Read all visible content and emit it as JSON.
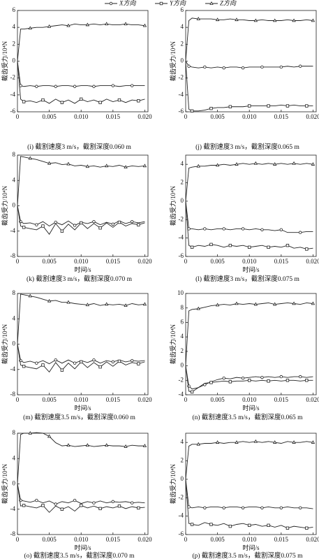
{
  "chart_data": [
    {
      "type": "line",
      "title": "(i)  截割速度3 m/s，截割深度0.060 m",
      "ylabel": "截齿受力/10⁴N",
      "x": [
        0,
        0.0005,
        0.001,
        0.002,
        0.003,
        0.004,
        0.005,
        0.006,
        0.007,
        0.008,
        0.009,
        0.01,
        0.011,
        0.012,
        0.013,
        0.014,
        0.015,
        0.016,
        0.017,
        0.018,
        0.019,
        0.02
      ],
      "xlim": [
        0,
        0.0205
      ],
      "xticks": [
        0,
        0.005,
        {
          "value": 0.01,
          "label": "0.010"
        },
        0.015,
        {
          "value": 0.02,
          "label": "0.020"
        }
      ],
      "ylim": [
        -6,
        6
      ],
      "yticks": [
        -6,
        -4,
        -2,
        0,
        2,
        4,
        6
      ],
      "series": [
        {
          "name": "X方向",
          "color": "#222",
          "values": [
            0,
            -2.9,
            -3.0,
            -2.9,
            -3.0,
            -2.9,
            -2.9,
            -3.0,
            -2.9,
            -2.9,
            -3.0,
            -2.9,
            -2.9,
            -3.0,
            -2.9,
            -2.9,
            -2.9,
            -3.0,
            -2.9,
            -2.9,
            -2.9,
            -2.9
          ]
        },
        {
          "name": "Y方向",
          "color": "#222",
          "values": [
            0,
            -4.5,
            -4.8,
            -4.7,
            -4.9,
            -4.6,
            -5.0,
            -4.5,
            -4.9,
            -4.6,
            -5.0,
            -4.5,
            -4.8,
            -4.6,
            -4.9,
            -4.5,
            -4.8,
            -4.6,
            -4.9,
            -4.6,
            -4.7,
            -4.5
          ]
        },
        {
          "name": "Z方向",
          "color": "#222",
          "values": [
            0,
            3.8,
            3.8,
            3.9,
            4.0,
            4.0,
            4.1,
            4.2,
            4.3,
            4.2,
            4.4,
            4.3,
            4.3,
            4.4,
            4.3,
            4.4,
            4.3,
            4.3,
            4.4,
            4.3,
            4.3,
            4.2
          ]
        }
      ]
    },
    {
      "type": "line",
      "title": "(j)  截割速度3 m/s，截割深度0.065 m",
      "ylabel": "截齿受力/10⁴N",
      "x": [
        0,
        0.0005,
        0.001,
        0.002,
        0.003,
        0.004,
        0.005,
        0.006,
        0.007,
        0.008,
        0.009,
        0.01,
        0.011,
        0.012,
        0.013,
        0.014,
        0.015,
        0.016,
        0.017,
        0.018,
        0.019,
        0.02
      ],
      "xlim": [
        0,
        0.0205
      ],
      "xticks": [
        0,
        0.005,
        {
          "value": 0.01,
          "label": "0.010"
        },
        0.015,
        {
          "value": 0.02,
          "label": "0.020"
        }
      ],
      "ylim": [
        -6,
        6
      ],
      "yticks": [
        -6,
        -4,
        -2,
        0,
        2,
        4,
        6
      ],
      "series": [
        {
          "name": "X方向",
          "color": "#222",
          "values": [
            0,
            -0.6,
            -0.7,
            -0.8,
            -0.7,
            -0.8,
            -0.7,
            -0.8,
            -0.7,
            -0.7,
            -0.8,
            -0.7,
            -0.7,
            -0.7,
            -0.7,
            -0.7,
            -0.7,
            -0.6,
            -0.7,
            -0.6,
            -0.6,
            -0.6
          ]
        },
        {
          "name": "Y方向",
          "color": "#222",
          "values": [
            0,
            -5.7,
            -5.9,
            -5.9,
            -5.8,
            -5.6,
            -5.5,
            -5.5,
            -5.4,
            -5.4,
            -5.4,
            -5.3,
            -5.3,
            -5.3,
            -5.3,
            -5.3,
            -5.2,
            -5.3,
            -5.2,
            -5.3,
            -5.3,
            -5.3
          ]
        },
        {
          "name": "Z方向",
          "color": "#222",
          "values": [
            0,
            4.8,
            5.1,
            5.0,
            5.0,
            5.0,
            4.9,
            4.9,
            5.0,
            4.9,
            4.9,
            4.8,
            4.8,
            4.9,
            4.8,
            4.8,
            4.8,
            4.9,
            4.8,
            4.8,
            4.9,
            4.8
          ]
        }
      ]
    },
    {
      "type": "line",
      "title": "(k)  截割速度3 m/s，截割深度0.070 m",
      "ylabel": "截齿受力/10⁴N",
      "xlabel": "时间/s",
      "x": [
        0,
        0.0005,
        0.001,
        0.002,
        0.003,
        0.004,
        0.005,
        0.006,
        0.007,
        0.008,
        0.009,
        0.01,
        0.011,
        0.012,
        0.013,
        0.014,
        0.015,
        0.016,
        0.017,
        0.018,
        0.019,
        0.02
      ],
      "xlim": [
        0,
        0.0205
      ],
      "xticks": [
        0,
        0.005,
        {
          "value": 0.01,
          "label": "0.010"
        },
        0.015,
        {
          "value": 0.02,
          "label": "0.020"
        }
      ],
      "ylim": [
        -8,
        8
      ],
      "yticks": [
        -8,
        -4,
        0,
        4,
        8
      ],
      "series": [
        {
          "name": "X方向",
          "color": "#222",
          "values": [
            0,
            -2.5,
            -2.8,
            -2.7,
            -3.0,
            -2.5,
            -3.2,
            -2.6,
            -3.0,
            -2.4,
            -3.1,
            -2.6,
            -2.8,
            -2.5,
            -3.0,
            -2.6,
            -2.9,
            -2.4,
            -2.8,
            -2.5,
            -2.7,
            -2.5
          ]
        },
        {
          "name": "Y方向",
          "color": "#222",
          "values": [
            0,
            -3.2,
            -3.4,
            -3.6,
            -3.8,
            -3.2,
            -4.5,
            -2.8,
            -4.0,
            -2.9,
            -3.8,
            -2.7,
            -3.6,
            -2.8,
            -3.5,
            -2.7,
            -3.4,
            -2.6,
            -3.2,
            -2.8,
            -3.0,
            -2.7
          ]
        },
        {
          "name": "Z方向",
          "color": "#222",
          "values": [
            0,
            7.8,
            7.7,
            7.5,
            7.3,
            7.0,
            6.7,
            6.8,
            6.5,
            6.6,
            6.3,
            6.4,
            6.2,
            6.3,
            6.1,
            6.3,
            6.2,
            6.4,
            6.1,
            6.3,
            6.2,
            6.3
          ]
        }
      ]
    },
    {
      "type": "line",
      "title": "(l)  截割速度3 m/s，截割深度0.075 m",
      "ylabel": "截齿受力/10⁴N",
      "xlabel": "时间/s",
      "x": [
        0,
        0.0005,
        0.001,
        0.002,
        0.003,
        0.004,
        0.005,
        0.006,
        0.007,
        0.008,
        0.009,
        0.01,
        0.011,
        0.012,
        0.013,
        0.014,
        0.015,
        0.016,
        0.017,
        0.018,
        0.019,
        0.02
      ],
      "xlim": [
        0,
        0.0205
      ],
      "xticks": [
        0,
        0.005,
        {
          "value": 0.01,
          "label": "0.010"
        },
        0.015,
        {
          "value": 0.02,
          "label": "0.020"
        }
      ],
      "ylim": [
        -6,
        5
      ],
      "yticks": [
        -6,
        -4,
        -2,
        0,
        2,
        4
      ],
      "series": [
        {
          "name": "X方向",
          "color": "#222",
          "values": [
            0,
            -3.0,
            -3.0,
            -3.1,
            -3.0,
            -3.1,
            -3.0,
            -3.0,
            -3.1,
            -3.0,
            -3.0,
            -3.1,
            -3.0,
            -3.1,
            -3.1,
            -3.2,
            -3.1,
            -3.4,
            -3.4,
            -3.4,
            -3.3,
            -3.3
          ]
        },
        {
          "name": "Y方向",
          "color": "#222",
          "values": [
            0,
            -4.8,
            -5.0,
            -4.8,
            -4.9,
            -4.7,
            -4.8,
            -5.0,
            -4.8,
            -4.9,
            -4.8,
            -5.0,
            -4.9,
            -4.8,
            -5.0,
            -4.9,
            -5.0,
            -4.8,
            -5.1,
            -5.0,
            -5.2,
            -5.1
          ]
        },
        {
          "name": "Z方向",
          "color": "#222",
          "values": [
            0,
            3.6,
            3.7,
            3.8,
            3.8,
            3.9,
            3.9,
            4.0,
            3.9,
            4.0,
            4.1,
            4.0,
            4.1,
            4.0,
            4.1,
            4.0,
            4.1,
            4.0,
            4.1,
            4.0,
            4.1,
            4.0
          ]
        }
      ]
    },
    {
      "type": "line",
      "title": "(m)  截割速度3.5 m/s，截割深度0.060 m",
      "ylabel": "截齿受力/10⁴N",
      "xlabel": "时间/s",
      "x": [
        0,
        0.0005,
        0.001,
        0.002,
        0.003,
        0.004,
        0.005,
        0.006,
        0.007,
        0.008,
        0.009,
        0.01,
        0.011,
        0.012,
        0.013,
        0.014,
        0.015,
        0.016,
        0.017,
        0.018,
        0.019,
        0.02
      ],
      "xlim": [
        0,
        0.0205
      ],
      "xticks": [
        0,
        0.005,
        {
          "value": 0.01,
          "label": "0.010"
        },
        0.015,
        {
          "value": 0.02,
          "label": "0.020"
        }
      ],
      "ylim": [
        -8,
        8
      ],
      "yticks": [
        -8,
        -4,
        0,
        4,
        8
      ],
      "series": [
        {
          "name": "X方向",
          "color": "#222",
          "values": [
            0,
            -2.6,
            -2.9,
            -2.7,
            -3.0,
            -2.6,
            -3.1,
            -2.5,
            -3.0,
            -2.5,
            -3.0,
            -2.6,
            -2.9,
            -2.5,
            -3.0,
            -2.6,
            -2.8,
            -2.5,
            -2.8,
            -2.6,
            -2.7,
            -2.6
          ]
        },
        {
          "name": "Y方向",
          "color": "#222",
          "values": [
            0,
            -3.3,
            -3.5,
            -3.7,
            -3.9,
            -3.3,
            -4.4,
            -2.9,
            -4.1,
            -3.0,
            -3.9,
            -2.8,
            -3.7,
            -2.9,
            -3.6,
            -2.8,
            -3.5,
            -2.7,
            -3.3,
            -2.9,
            -3.1,
            -2.8
          ]
        },
        {
          "name": "Z方向",
          "color": "#222",
          "values": [
            0,
            7.9,
            7.8,
            7.6,
            7.4,
            7.1,
            6.8,
            6.9,
            6.6,
            6.6,
            6.4,
            6.3,
            6.2,
            6.4,
            6.1,
            6.3,
            6.2,
            6.3,
            6.1,
            6.4,
            6.2,
            6.3
          ]
        }
      ]
    },
    {
      "type": "line",
      "title": "(n)  截割速度3.5 m/s，截割深度0.065 m",
      "ylabel": "截齿受力/10⁴N",
      "xlabel": "时间/s",
      "x": [
        0,
        0.0005,
        0.001,
        0.002,
        0.003,
        0.004,
        0.005,
        0.006,
        0.007,
        0.008,
        0.009,
        0.01,
        0.011,
        0.012,
        0.013,
        0.014,
        0.015,
        0.016,
        0.017,
        0.018,
        0.019,
        0.02
      ],
      "xlim": [
        0,
        0.0205
      ],
      "xticks": [
        0,
        0.005,
        {
          "value": 0.01,
          "label": "0.010"
        },
        0.015,
        {
          "value": 0.02,
          "label": "0.020"
        }
      ],
      "ylim": [
        -4,
        10
      ],
      "yticks": [
        -4,
        -2,
        0,
        2,
        4,
        6,
        8,
        10
      ],
      "series": [
        {
          "name": "X方向",
          "color": "#222",
          "values": [
            0,
            -2.8,
            -3.2,
            -3.0,
            -2.6,
            -2.2,
            -1.9,
            -1.7,
            -1.8,
            -1.6,
            -1.7,
            -1.6,
            -1.5,
            -1.6,
            -1.5,
            -1.6,
            -1.5,
            -1.6,
            -1.5,
            -1.5,
            -1.6,
            -1.5
          ]
        },
        {
          "name": "Y方向",
          "color": "#222",
          "values": [
            0,
            -3.5,
            -3.6,
            -3.0,
            -2.4,
            -2.3,
            -2.2,
            -2.1,
            -2.2,
            -2.1,
            -2.1,
            -2.0,
            -2.1,
            -2.0,
            -2.1,
            -2.0,
            -2.1,
            -2.0,
            -2.0,
            -2.1,
            -2.0,
            -2.0
          ]
        },
        {
          "name": "Z方向",
          "color": "#222",
          "values": [
            0,
            7.6,
            7.8,
            7.9,
            8.1,
            8.3,
            8.4,
            8.5,
            8.4,
            8.6,
            8.5,
            8.6,
            8.5,
            8.6,
            8.7,
            8.5,
            8.6,
            8.7,
            8.6,
            8.5,
            8.7,
            8.6
          ]
        }
      ]
    },
    {
      "type": "line",
      "title": "(o)  截割速度3.5 m/s，截割深度0.070 m",
      "ylabel": "截齿受力/10⁴N",
      "xlabel": "时间/s",
      "x": [
        0,
        0.0005,
        0.001,
        0.002,
        0.003,
        0.004,
        0.005,
        0.006,
        0.007,
        0.008,
        0.009,
        0.01,
        0.011,
        0.012,
        0.013,
        0.014,
        0.015,
        0.016,
        0.017,
        0.018,
        0.019,
        0.02
      ],
      "xlim": [
        0,
        0.0205
      ],
      "xticks": [
        0,
        0.005,
        {
          "value": 0.01,
          "label": "0.010"
        },
        0.015,
        {
          "value": 0.02,
          "label": "0.020"
        }
      ],
      "ylim": [
        -8,
        8
      ],
      "yticks": [
        -8,
        -4,
        0,
        4,
        8
      ],
      "series": [
        {
          "name": "X方向",
          "color": "#222",
          "values": [
            0,
            -2.6,
            -2.7,
            -2.9,
            -2.6,
            -3.0,
            -2.7,
            -3.2,
            -2.8,
            -3.0,
            -2.6,
            -3.1,
            -2.8,
            -3.0,
            -2.7,
            -3.0,
            -2.8,
            -2.9,
            -2.8,
            -3.0,
            -2.9,
            -3.0
          ]
        },
        {
          "name": "Y方向",
          "color": "#222",
          "values": [
            0,
            -3.5,
            -3.4,
            -3.6,
            -3.8,
            -3.4,
            -4.5,
            -3.5,
            -4.0,
            -3.6,
            -4.3,
            -3.4,
            -3.8,
            -3.5,
            -3.9,
            -3.6,
            -3.8,
            -3.5,
            -3.9,
            -3.6,
            -3.8,
            -3.7
          ]
        },
        {
          "name": "Z方向",
          "color": "#222",
          "values": [
            0,
            7.8,
            8.0,
            8.0,
            8.1,
            8.0,
            7.5,
            6.5,
            6.0,
            6.1,
            5.9,
            6.0,
            6.1,
            5.9,
            6.0,
            6.1,
            6.0,
            6.0,
            5.9,
            6.1,
            6.0,
            6.0
          ]
        }
      ]
    },
    {
      "type": "line",
      "title": "(p)  截割速度3.5 m/s，截割深度0.075 m",
      "ylabel": "截齿受力/10⁴N",
      "xlabel": "时间/s",
      "x": [
        0,
        0.0005,
        0.001,
        0.002,
        0.003,
        0.004,
        0.005,
        0.006,
        0.007,
        0.008,
        0.009,
        0.01,
        0.011,
        0.012,
        0.013,
        0.014,
        0.015,
        0.016,
        0.017,
        0.018,
        0.019,
        0.02
      ],
      "xlim": [
        0,
        0.0205
      ],
      "xticks": [
        0,
        0.005,
        {
          "value": 0.01,
          "label": "0.010"
        },
        0.015,
        {
          "value": 0.02,
          "label": "0.020"
        }
      ],
      "ylim": [
        -6,
        5
      ],
      "yticks": [
        -6,
        -4,
        -2,
        0,
        2,
        4
      ],
      "series": [
        {
          "name": "X方向",
          "color": "#222",
          "values": [
            0,
            -3.0,
            -3.1,
            -3.0,
            -3.1,
            -3.0,
            -3.0,
            -3.1,
            -3.0,
            -3.0,
            -3.1,
            -3.0,
            -3.0,
            -3.1,
            -3.0,
            -3.1,
            -3.1,
            -3.0,
            -3.1,
            -3.1,
            -3.1,
            -3.2
          ]
        },
        {
          "name": "Y方向",
          "color": "#222",
          "values": [
            0,
            -4.8,
            -4.9,
            -5.0,
            -4.7,
            -4.9,
            -5.0,
            -4.8,
            -5.1,
            -4.9,
            -4.8,
            -5.0,
            -4.9,
            -5.1,
            -5.0,
            -5.2,
            -5.0,
            -5.3,
            -5.1,
            -5.2,
            -5.3,
            -5.2
          ]
        },
        {
          "name": "Z方向",
          "color": "#222",
          "values": [
            0,
            3.6,
            3.8,
            3.8,
            3.9,
            3.9,
            4.0,
            3.9,
            4.0,
            4.0,
            4.1,
            4.0,
            4.1,
            4.0,
            4.1,
            4.0,
            3.9,
            4.1,
            4.0,
            4.0,
            4.1,
            4.0
          ]
        }
      ]
    }
  ]
}
